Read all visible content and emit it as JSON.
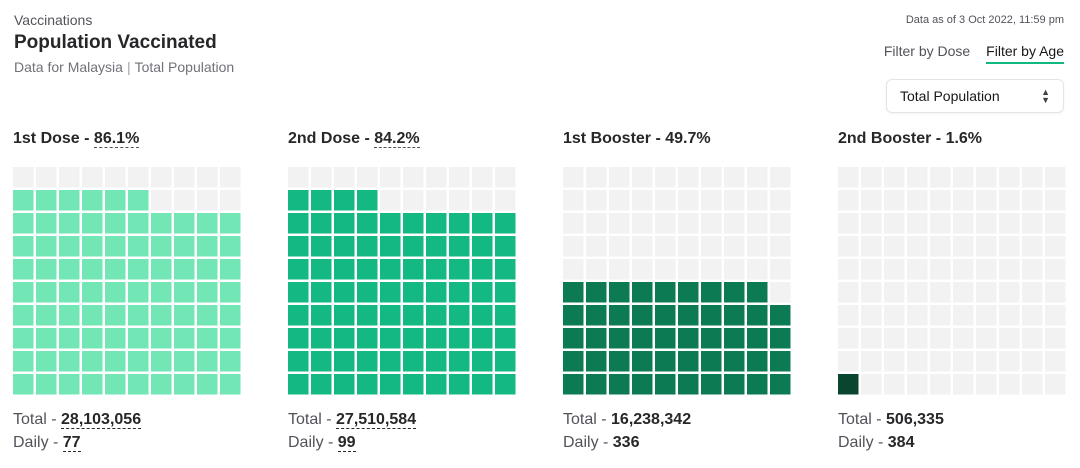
{
  "header": {
    "eyebrow": "Vaccinations",
    "title": "Population Vaccinated",
    "subtitle_region": "Data for Malaysia",
    "subtitle_population": "Total Population"
  },
  "as_of": "Data as of 3 Oct 2022, 11:59 pm",
  "filters": {
    "by_dose": "Filter by Dose",
    "by_age": "Filter by Age",
    "active": "by_age"
  },
  "select": {
    "value": "Total Population"
  },
  "labels": {
    "total": "Total - ",
    "daily": "Daily - "
  },
  "colors": {
    "empty": "#f2f2f3",
    "dose1": "#73e6b6",
    "dose2": "#14b882",
    "booster1": "#0c7a52",
    "booster2": "#0a4530"
  },
  "chart_data": {
    "type": "waffle",
    "grid": [
      10,
      10
    ],
    "series": [
      {
        "name": "1st Dose",
        "percent_label": "86.1%",
        "value": 86.1,
        "total": "28,103,056",
        "daily": "77",
        "color": "#73e6b6"
      },
      {
        "name": "2nd Dose",
        "percent_label": "84.2%",
        "value": 84.2,
        "total": "27,510,584",
        "daily": "99",
        "color": "#14b882"
      },
      {
        "name": "1st Booster",
        "percent_label": "49.7%",
        "value": 49.7,
        "total": "16,238,342",
        "daily": "336",
        "color": "#0c7a52"
      },
      {
        "name": "2nd Booster",
        "percent_label": "1.6%",
        "value": 1.6,
        "total": "506,335",
        "daily": "384",
        "color": "#0a4530"
      }
    ]
  }
}
